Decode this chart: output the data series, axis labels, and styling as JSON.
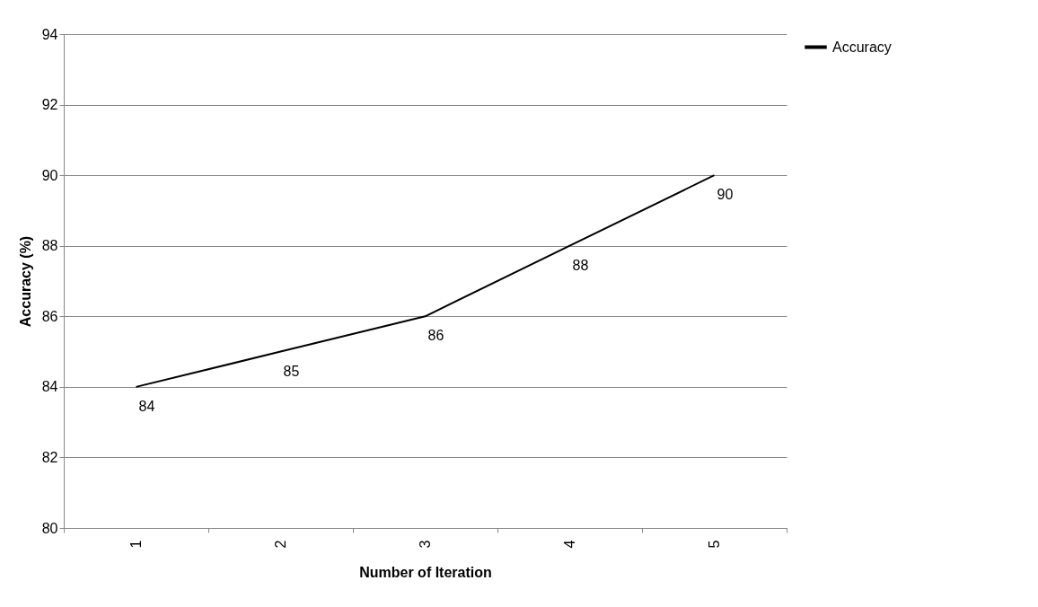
{
  "chart_data": {
    "type": "line",
    "xlabel": "Number of Iteration",
    "ylabel": "Accuracy (%)",
    "categories": [
      "1",
      "2",
      "3",
      "4",
      "5"
    ],
    "series": [
      {
        "name": "Accuracy",
        "color": "#000000",
        "values": [
          84,
          85,
          86,
          88,
          90
        ]
      }
    ],
    "ylim": [
      80,
      94
    ],
    "yticks": [
      80,
      82,
      84,
      86,
      88,
      90,
      92,
      94
    ],
    "grid": "y",
    "legend": "right",
    "data_labels": true,
    "marker": "none"
  }
}
